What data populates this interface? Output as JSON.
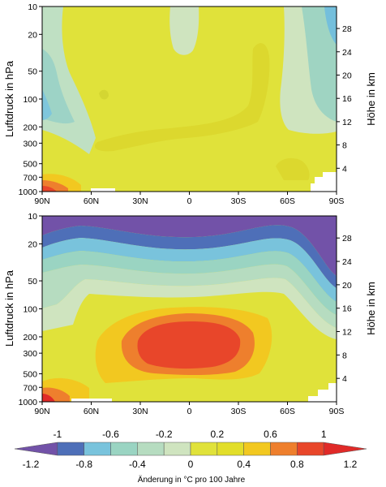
{
  "chart_data": [
    {
      "type": "heatmap",
      "panel": "top",
      "xlabel": "",
      "ylabel_left": "Luftdruck in hPa",
      "ylabel_right": "Höhe in km",
      "x_ticks": [
        "90N",
        "60N",
        "30N",
        "0",
        "30S",
        "60S",
        "90S"
      ],
      "y_ticks_left": [
        "10",
        "20",
        "50",
        "100",
        "200",
        "300",
        "500",
        "700",
        "1000"
      ],
      "y_ticks_right": [
        "28",
        "24",
        "20",
        "16",
        "12",
        "8",
        "4"
      ],
      "levels_celsius_per_100yr": [
        -1.2,
        -1,
        -0.8,
        -0.6,
        -0.4,
        -0.2,
        0,
        0.2,
        0.4,
        0.6,
        0.8,
        1,
        1.2
      ],
      "background_value_range": [
        0.2,
        0.4
      ],
      "regions": [
        {
          "area": "most of domain",
          "range": [
            0.2,
            0.4
          ]
        },
        {
          "area": "stratosphere 90N-70N",
          "range": [
            -0.2,
            0.2
          ]
        },
        {
          "area": "stratosphere 40N-30N",
          "range": [
            0,
            0.2
          ]
        },
        {
          "area": "stratosphere near 10S",
          "range": [
            0,
            0.2
          ]
        },
        {
          "area": "stratosphere 45S-60S",
          "range": [
            -0.4,
            0
          ]
        },
        {
          "area": "stratosphere 80S-90S",
          "range": [
            -0.8,
            -0.4
          ]
        },
        {
          "area": "surface 90N-70N",
          "range": [
            0.6,
            1.0
          ]
        }
      ]
    },
    {
      "type": "heatmap",
      "panel": "bottom",
      "xlabel": "",
      "ylabel_left": "Luftdruck in hPa",
      "ylabel_right": "Höhe in km",
      "x_ticks": [
        "90N",
        "60N",
        "30N",
        "0",
        "30S",
        "60S",
        "90S"
      ],
      "y_ticks_left": [
        "10",
        "20",
        "50",
        "100",
        "200",
        "300",
        "500",
        "700",
        "1000"
      ],
      "y_ticks_right": [
        "28",
        "24",
        "20",
        "16",
        "12",
        "8",
        "4"
      ],
      "levels_celsius_per_100yr": [
        -1.2,
        -1,
        -0.8,
        -0.6,
        -0.4,
        -0.2,
        0,
        0.2,
        0.4,
        0.6,
        0.8,
        1,
        1.2
      ],
      "regions": [
        {
          "area": "upper stratosphere 10-20 hPa",
          "range": [
            -1.2,
            -0.8
          ]
        },
        {
          "area": "lower stratosphere 50-100 hPa",
          "range": [
            -0.6,
            0
          ]
        },
        {
          "area": "upper troposphere tropics 200-300 hPa",
          "range": [
            0.8,
            1.0
          ]
        },
        {
          "area": "mid troposphere 30N-30S",
          "range": [
            0.4,
            0.8
          ]
        },
        {
          "area": "lower troposphere",
          "range": [
            0.2,
            0.6
          ]
        },
        {
          "area": "surface 90N-80N",
          "range": [
            1.0,
            1.2
          ]
        }
      ]
    }
  ],
  "colorbar": {
    "colors": [
      "#7252a8",
      "#4e6fb8",
      "#79c3dc",
      "#9ad4c2",
      "#b6dcc0",
      "#cfe4bf",
      "#e0e23a",
      "#e2de2a",
      "#f2c820",
      "#ee7f2d",
      "#e8462a",
      "#e02a28"
    ],
    "labels_top": [
      "-1",
      "-0.6",
      "-0.2",
      "0.2",
      "0.6",
      "1"
    ],
    "labels_bottom": [
      "-1.2",
      "-0.8",
      "-0.4",
      "0",
      "0.4",
      "0.8",
      "1.2"
    ],
    "caption": "Änderung in °C pro 100 Jahre"
  }
}
